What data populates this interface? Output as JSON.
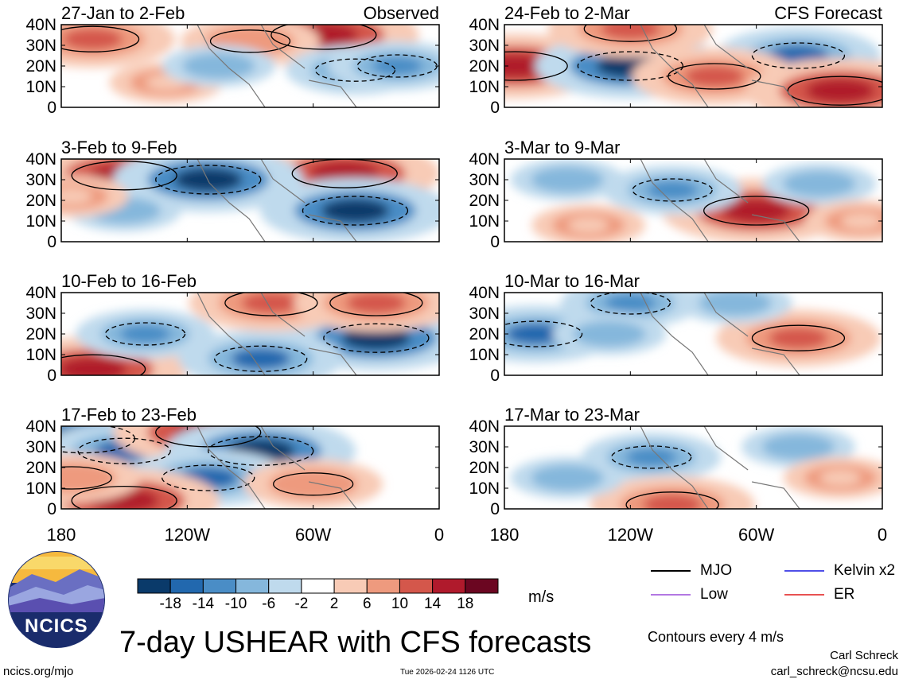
{
  "chart_data": {
    "type": "heatmap",
    "title": "7-day USHEAR with CFS forecasts",
    "variable": "USHEAR",
    "units": "m/s",
    "contour_note": "Contours every 4 m/s",
    "y_axis": {
      "range": [
        0,
        40
      ],
      "tick_labels": [
        "40N",
        "30N",
        "20N",
        "10N",
        "0"
      ]
    },
    "x_axis": {
      "range_deg": [
        180,
        0
      ],
      "tick_labels": [
        "180",
        "120W",
        "60W",
        "0"
      ]
    },
    "columns": [
      "Observed",
      "CFS Forecast"
    ],
    "panels": [
      {
        "period": "27-Jan to 2-Feb",
        "source": "Observed",
        "features": [
          {
            "lon_w": 165,
            "lat": 33,
            "value": 14
          },
          {
            "lon_w": 55,
            "lat": 35,
            "value": 18
          },
          {
            "lon_w": 90,
            "lat": 32,
            "value": 10
          },
          {
            "lon_w": 40,
            "lat": 18,
            "value": -10
          },
          {
            "lon_w": 130,
            "lat": 12,
            "value": 6
          },
          {
            "lon_w": 105,
            "lat": 20,
            "value": -6
          },
          {
            "lon_w": 20,
            "lat": 20,
            "value": -10
          }
        ]
      },
      {
        "period": "3-Feb to 9-Feb",
        "source": "Observed",
        "features": [
          {
            "lon_w": 150,
            "lat": 32,
            "value": 18
          },
          {
            "lon_w": 45,
            "lat": 33,
            "value": 18
          },
          {
            "lon_w": 110,
            "lat": 30,
            "value": -18
          },
          {
            "lon_w": 40,
            "lat": 15,
            "value": -18
          },
          {
            "lon_w": 150,
            "lat": 15,
            "value": -6
          },
          {
            "lon_w": 175,
            "lat": 22,
            "value": 6
          }
        ]
      },
      {
        "period": "10-Feb to 16-Feb",
        "source": "Observed",
        "features": [
          {
            "lon_w": 165,
            "lat": 3,
            "value": 18
          },
          {
            "lon_w": 30,
            "lat": 18,
            "value": -18
          },
          {
            "lon_w": 85,
            "lat": 8,
            "value": -14
          },
          {
            "lon_w": 140,
            "lat": 20,
            "value": -10
          },
          {
            "lon_w": 80,
            "lat": 35,
            "value": 14
          },
          {
            "lon_w": 30,
            "lat": 35,
            "value": 14
          }
        ]
      },
      {
        "period": "17-Feb to 23-Feb",
        "source": "Observed",
        "features": [
          {
            "lon_w": 170,
            "lat": 34,
            "value": -18
          },
          {
            "lon_w": 150,
            "lat": 28,
            "value": -14
          },
          {
            "lon_w": 110,
            "lat": 37,
            "value": 18
          },
          {
            "lon_w": 85,
            "lat": 28,
            "value": -18
          },
          {
            "lon_w": 110,
            "lat": 15,
            "value": -14
          },
          {
            "lon_w": 150,
            "lat": 4,
            "value": 18
          },
          {
            "lon_w": 60,
            "lat": 12,
            "value": 10
          },
          {
            "lon_w": 175,
            "lat": 15,
            "value": 10
          }
        ]
      },
      {
        "period": "24-Feb to 2-Mar",
        "source": "CFS Forecast",
        "features": [
          {
            "lon_w": 175,
            "lat": 20,
            "value": 18
          },
          {
            "lon_w": 120,
            "lat": 20,
            "value": -18
          },
          {
            "lon_w": 40,
            "lat": 25,
            "value": -14
          },
          {
            "lon_w": 80,
            "lat": 15,
            "value": 14
          },
          {
            "lon_w": 20,
            "lat": 8,
            "value": 18
          },
          {
            "lon_w": 120,
            "lat": 38,
            "value": 14
          }
        ]
      },
      {
        "period": "3-Mar to 9-Mar",
        "source": "CFS Forecast",
        "features": [
          {
            "lon_w": 60,
            "lat": 15,
            "value": 18
          },
          {
            "lon_w": 100,
            "lat": 25,
            "value": -10
          },
          {
            "lon_w": 30,
            "lat": 28,
            "value": -6
          },
          {
            "lon_w": 150,
            "lat": 30,
            "value": -6
          },
          {
            "lon_w": 140,
            "lat": 8,
            "value": 6
          },
          {
            "lon_w": 10,
            "lat": 10,
            "value": 6
          }
        ]
      },
      {
        "period": "10-Mar to 16-Mar",
        "source": "CFS Forecast",
        "features": [
          {
            "lon_w": 165,
            "lat": 20,
            "value": -14
          },
          {
            "lon_w": 120,
            "lat": 35,
            "value": -10
          },
          {
            "lon_w": 40,
            "lat": 18,
            "value": 14
          },
          {
            "lon_w": 70,
            "lat": 35,
            "value": -6
          },
          {
            "lon_w": 130,
            "lat": 20,
            "value": -6
          }
        ]
      },
      {
        "period": "17-Mar to 23-Mar",
        "source": "CFS Forecast",
        "features": [
          {
            "lon_w": 110,
            "lat": 25,
            "value": -10
          },
          {
            "lon_w": 100,
            "lat": 2,
            "value": 14
          },
          {
            "lon_w": 40,
            "lat": 30,
            "value": -6
          },
          {
            "lon_w": 150,
            "lat": 15,
            "value": -6
          },
          {
            "lon_w": 20,
            "lat": 15,
            "value": 6
          }
        ]
      }
    ],
    "colorbar": {
      "tick_labels": [
        "-18",
        "-14",
        "-10",
        "-6",
        "-2",
        "2",
        "6",
        "10",
        "14",
        "18"
      ],
      "colors": [
        "#0a3a6a",
        "#2268ae",
        "#4a8dc6",
        "#85b7dc",
        "#bfdaed",
        "#ffffff",
        "#f8cbb6",
        "#ee9a7e",
        "#d4574b",
        "#b01a2c",
        "#6b0621"
      ]
    },
    "legend": [
      {
        "label": "MJO",
        "color": "#000000"
      },
      {
        "label": "Kelvin x2",
        "color": "#1515e0"
      },
      {
        "label": "Low",
        "color": "#9a4cd8"
      },
      {
        "label": "ER",
        "color": "#e01818"
      }
    ]
  },
  "logo": {
    "text": "NCICS"
  },
  "footer": {
    "url": "ncics.org/mjo",
    "timestamp": "Tue 2026-02-24 1126 UTC",
    "author": "Carl Schreck",
    "email": "carl_schreck@ncsu.edu"
  }
}
